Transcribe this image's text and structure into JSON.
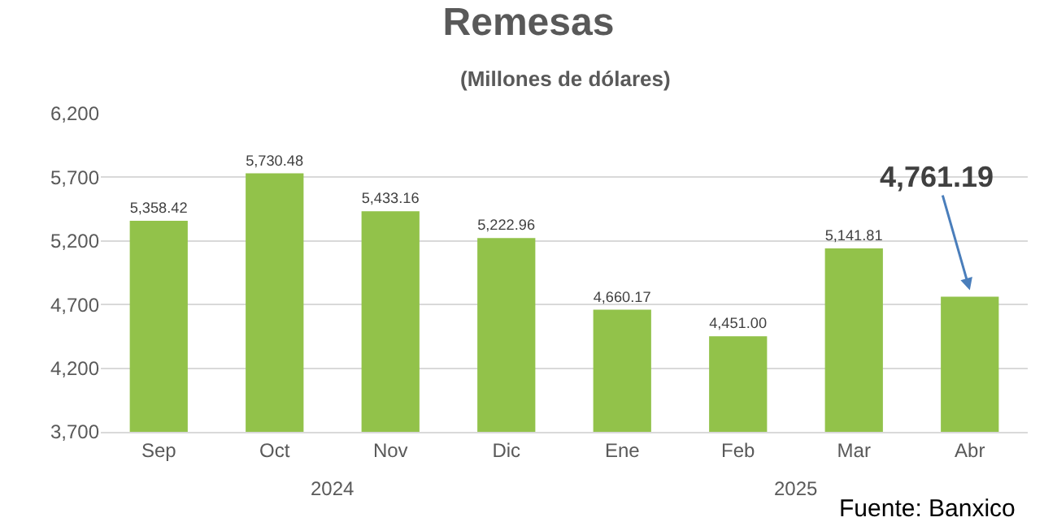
{
  "chart_data": {
    "type": "bar",
    "title": "Remesas",
    "subtitle": "(Millones de dólares)",
    "categories": [
      "Sep",
      "Oct",
      "Nov",
      "Dic",
      "Ene",
      "Feb",
      "Mar",
      "Abr"
    ],
    "values": [
      5358.42,
      5730.48,
      5433.16,
      5222.96,
      4660.17,
      4451.0,
      5141.81,
      4761.19
    ],
    "value_labels": [
      "5,358.42",
      "5,730.48",
      "5,433.16",
      "5,222.96",
      "4,660.17",
      "4,451.00",
      "5,141.81",
      null
    ],
    "color": "#92c24a",
    "ylim": [
      3700,
      6200
    ],
    "yticks": [
      {
        "value": 3700,
        "label": "3,700"
      },
      {
        "value": 4200,
        "label": "4,200"
      },
      {
        "value": 4700,
        "label": "4,700"
      },
      {
        "value": 5200,
        "label": "5,200"
      },
      {
        "value": 5700,
        "label": "5,700"
      },
      {
        "value": 6200,
        "label": "6,200"
      }
    ],
    "grid": "y",
    "annotations": [
      "2024",
      "2025",
      {
        "text": "4,761.19",
        "x": "Abr",
        "y": 4761.19
      },
      "Fuente: Banxico"
    ]
  }
}
